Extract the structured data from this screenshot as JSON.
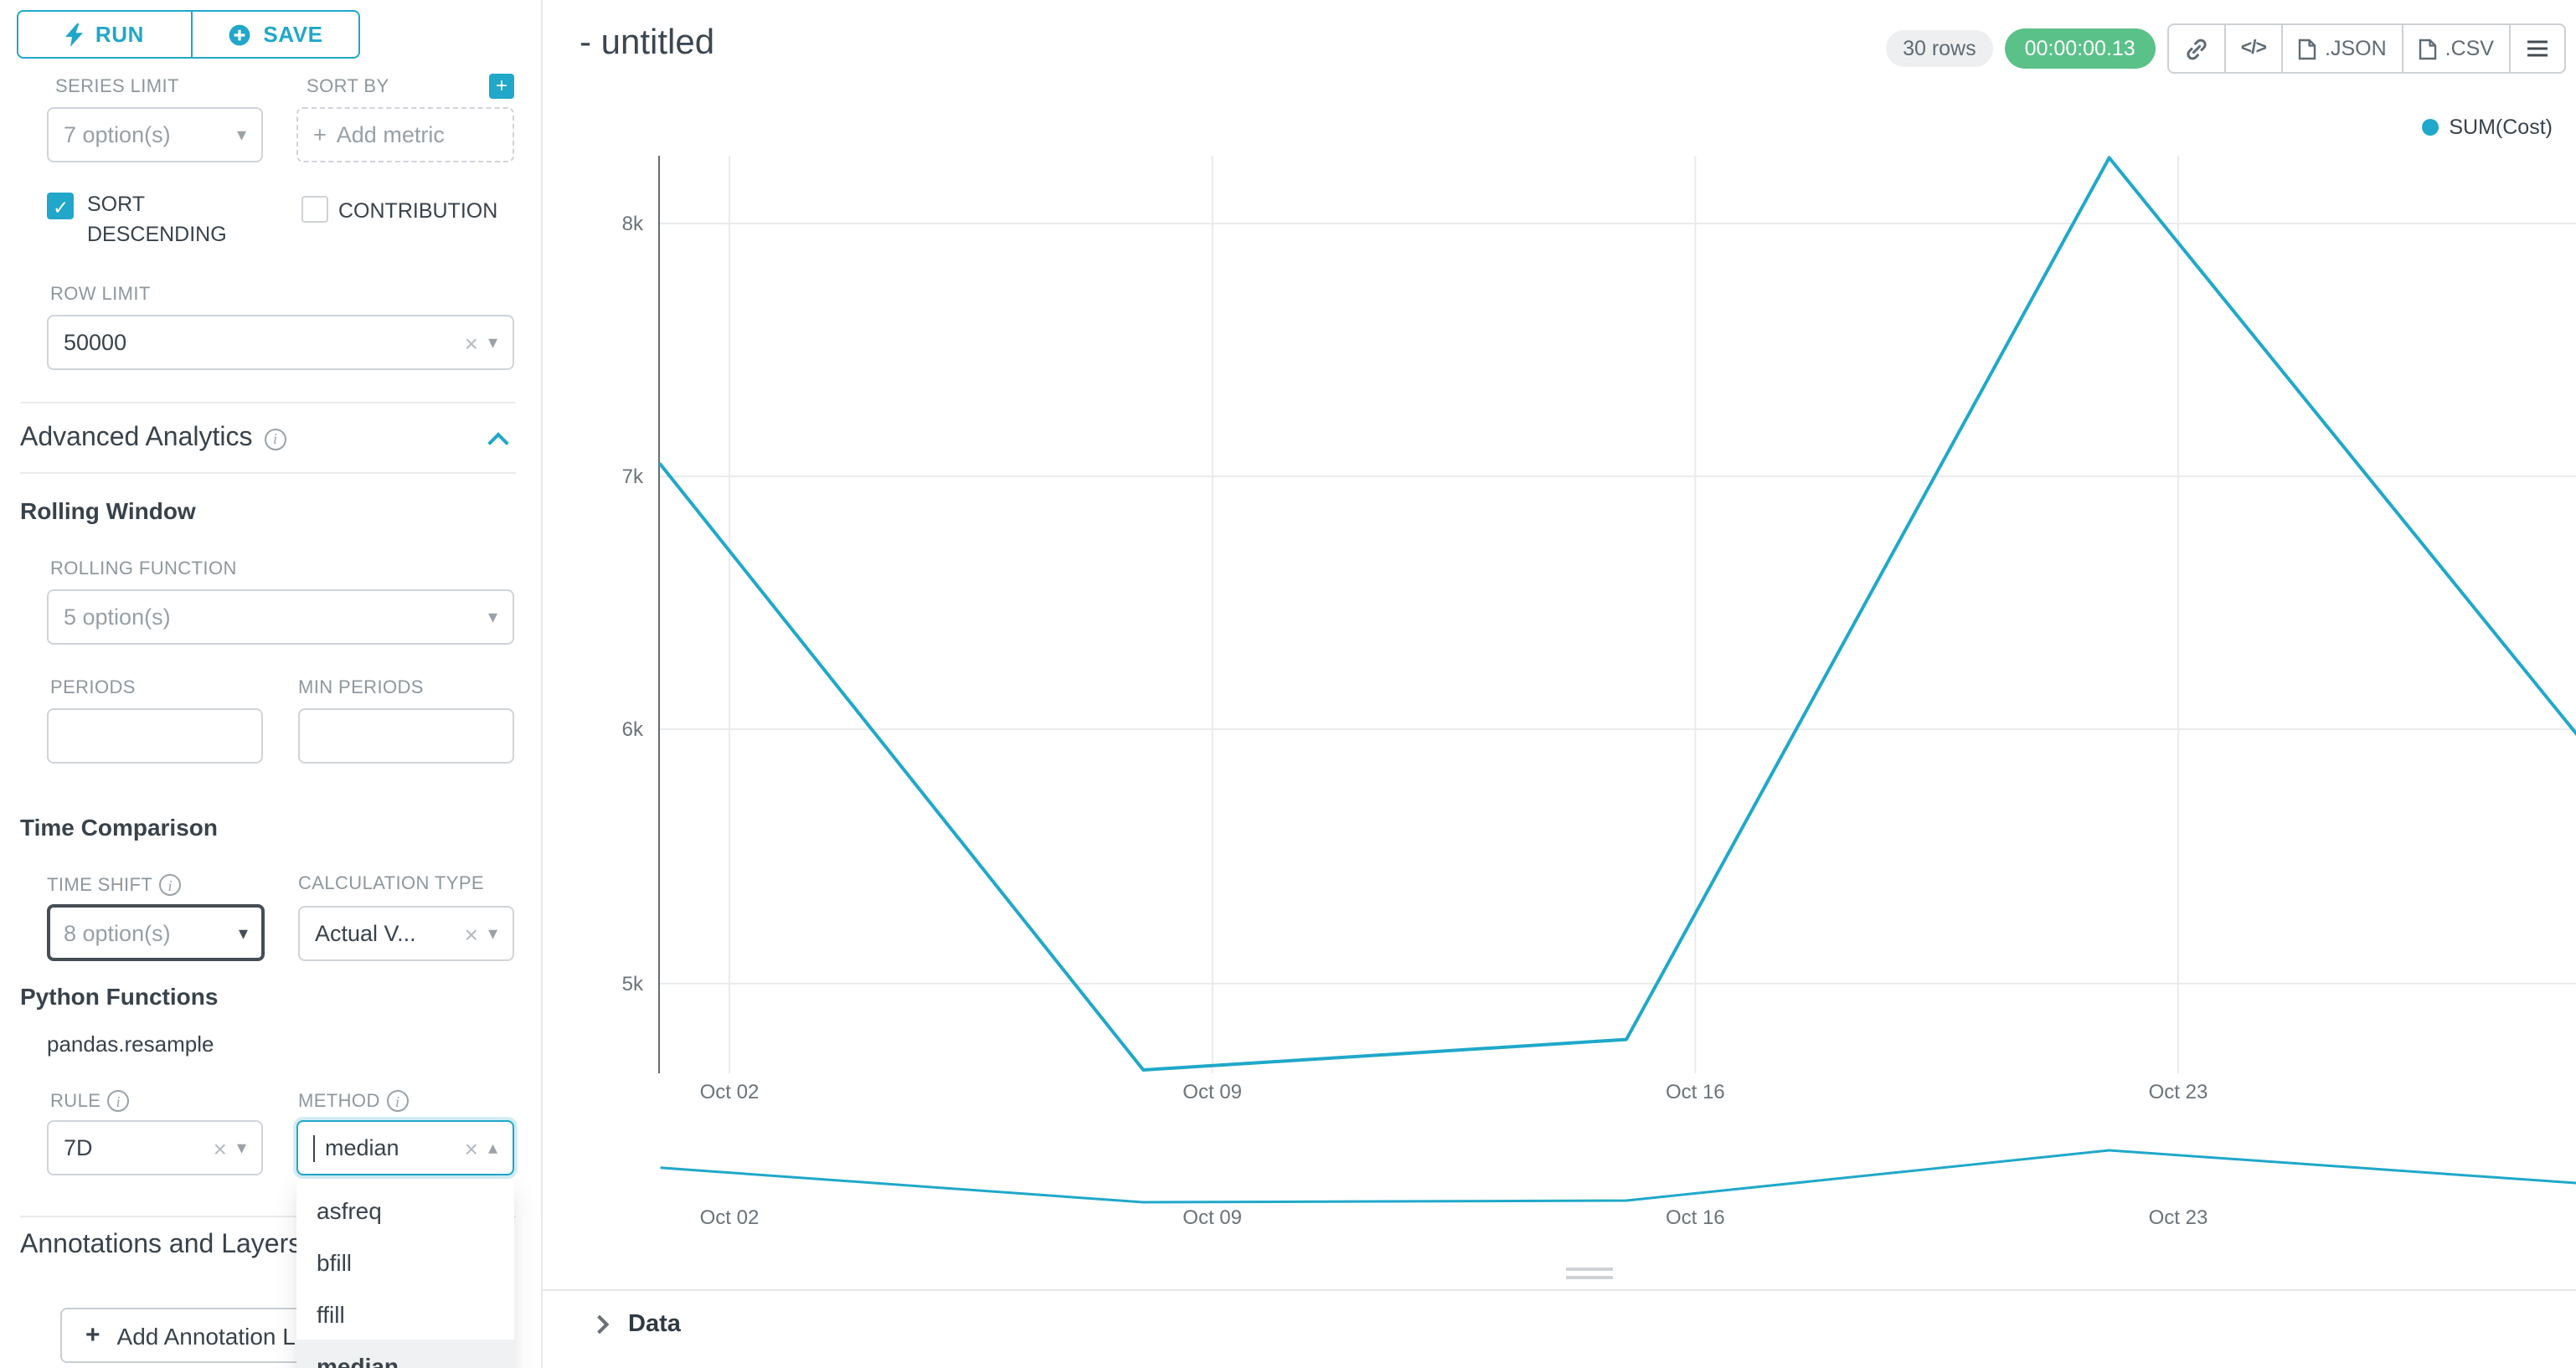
{
  "actions": {
    "run": "RUN",
    "save": "SAVE"
  },
  "panel": {
    "series_limit": {
      "label": "SERIES LIMIT",
      "value": "7 option(s)"
    },
    "sort_by": {
      "label": "SORT BY",
      "placeholder": "Add metric"
    },
    "sort_descending": {
      "label": "SORT DESCENDING",
      "checked": true
    },
    "contribution": {
      "label": "CONTRIBUTION",
      "checked": false
    },
    "row_limit": {
      "label": "ROW LIMIT",
      "value": "50000"
    },
    "advanced_analytics": {
      "title": "Advanced Analytics"
    },
    "rolling_window": {
      "title": "Rolling Window",
      "rolling_function": {
        "label": "ROLLING FUNCTION",
        "value": "5 option(s)"
      },
      "periods": {
        "label": "PERIODS",
        "value": ""
      },
      "min_periods": {
        "label": "MIN PERIODS",
        "value": ""
      }
    },
    "time_comparison": {
      "title": "Time Comparison",
      "time_shift": {
        "label": "TIME SHIFT",
        "value": "8 option(s)"
      },
      "calculation_type": {
        "label": "CALCULATION TYPE",
        "value": "Actual V..."
      }
    },
    "python_functions": {
      "title": "Python Functions",
      "subtitle": "pandas.resample",
      "rule": {
        "label": "RULE",
        "value": "7D"
      },
      "method": {
        "label": "METHOD",
        "value": "median",
        "options": [
          "asfreq",
          "bfill",
          "ffill",
          "median"
        ],
        "selected": "median"
      }
    },
    "annotations": {
      "title": "Annotations and Layers",
      "add_button": "Add Annotation Layer"
    }
  },
  "header": {
    "title": "- untitled",
    "rows_badge": "30 rows",
    "timer_badge": "00:00:00.13",
    "json_label": ".JSON",
    "csv_label": ".CSV"
  },
  "data_panel": {
    "label": "Data"
  },
  "colors": {
    "accent": "#20A7C9",
    "line": "#1FA8C9",
    "timer_green": "#5ac189"
  },
  "chart_data": {
    "type": "line",
    "title": "- untitled",
    "grid": true,
    "legend_position": "top-right",
    "x_ticks": [
      {
        "label": "Oct 02",
        "day": 2
      },
      {
        "label": "Oct 09",
        "day": 9
      },
      {
        "label": "Oct 16",
        "day": 16
      },
      {
        "label": "Oct 23",
        "day": 23
      }
    ],
    "y_ticks": [
      {
        "label": "8k",
        "value": 8000
      },
      {
        "label": "7k",
        "value": 7000
      },
      {
        "label": "6k",
        "value": 6000
      },
      {
        "label": "5k",
        "value": 5000
      }
    ],
    "series": [
      {
        "name": "SUM(Cost)",
        "color": "#1FA8C9",
        "points": [
          {
            "day": 1,
            "value": 7050
          },
          {
            "day": 8,
            "value": 4660
          },
          {
            "day": 15,
            "value": 4780
          },
          {
            "day": 22,
            "value": 8260
          },
          {
            "day": 29,
            "value": 5910
          }
        ]
      }
    ],
    "has_range_selector": true
  }
}
